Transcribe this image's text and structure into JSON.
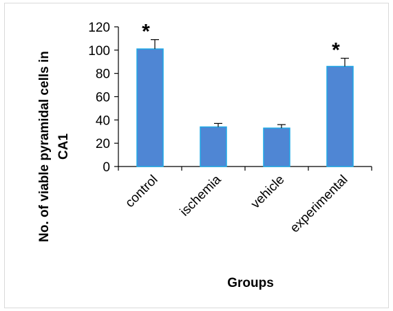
{
  "chart_data": {
    "type": "bar",
    "categories": [
      "control",
      "ischemia",
      "vehicle",
      "experimental"
    ],
    "values": [
      101,
      34,
      33,
      86
    ],
    "error": [
      8,
      3,
      3,
      7
    ],
    "significance": [
      "*",
      "",
      "",
      "*"
    ],
    "xlabel": "Groups",
    "ylabel_line1": "No. of viable pyramidal cells in",
    "ylabel_line2": "CA1",
    "ylim": [
      0,
      120
    ],
    "yticks": [
      0,
      20,
      40,
      60,
      80,
      100,
      120
    ],
    "bar_color": "#4f86d4",
    "bar_edge_color": "#1ea8e6",
    "grid": false
  }
}
